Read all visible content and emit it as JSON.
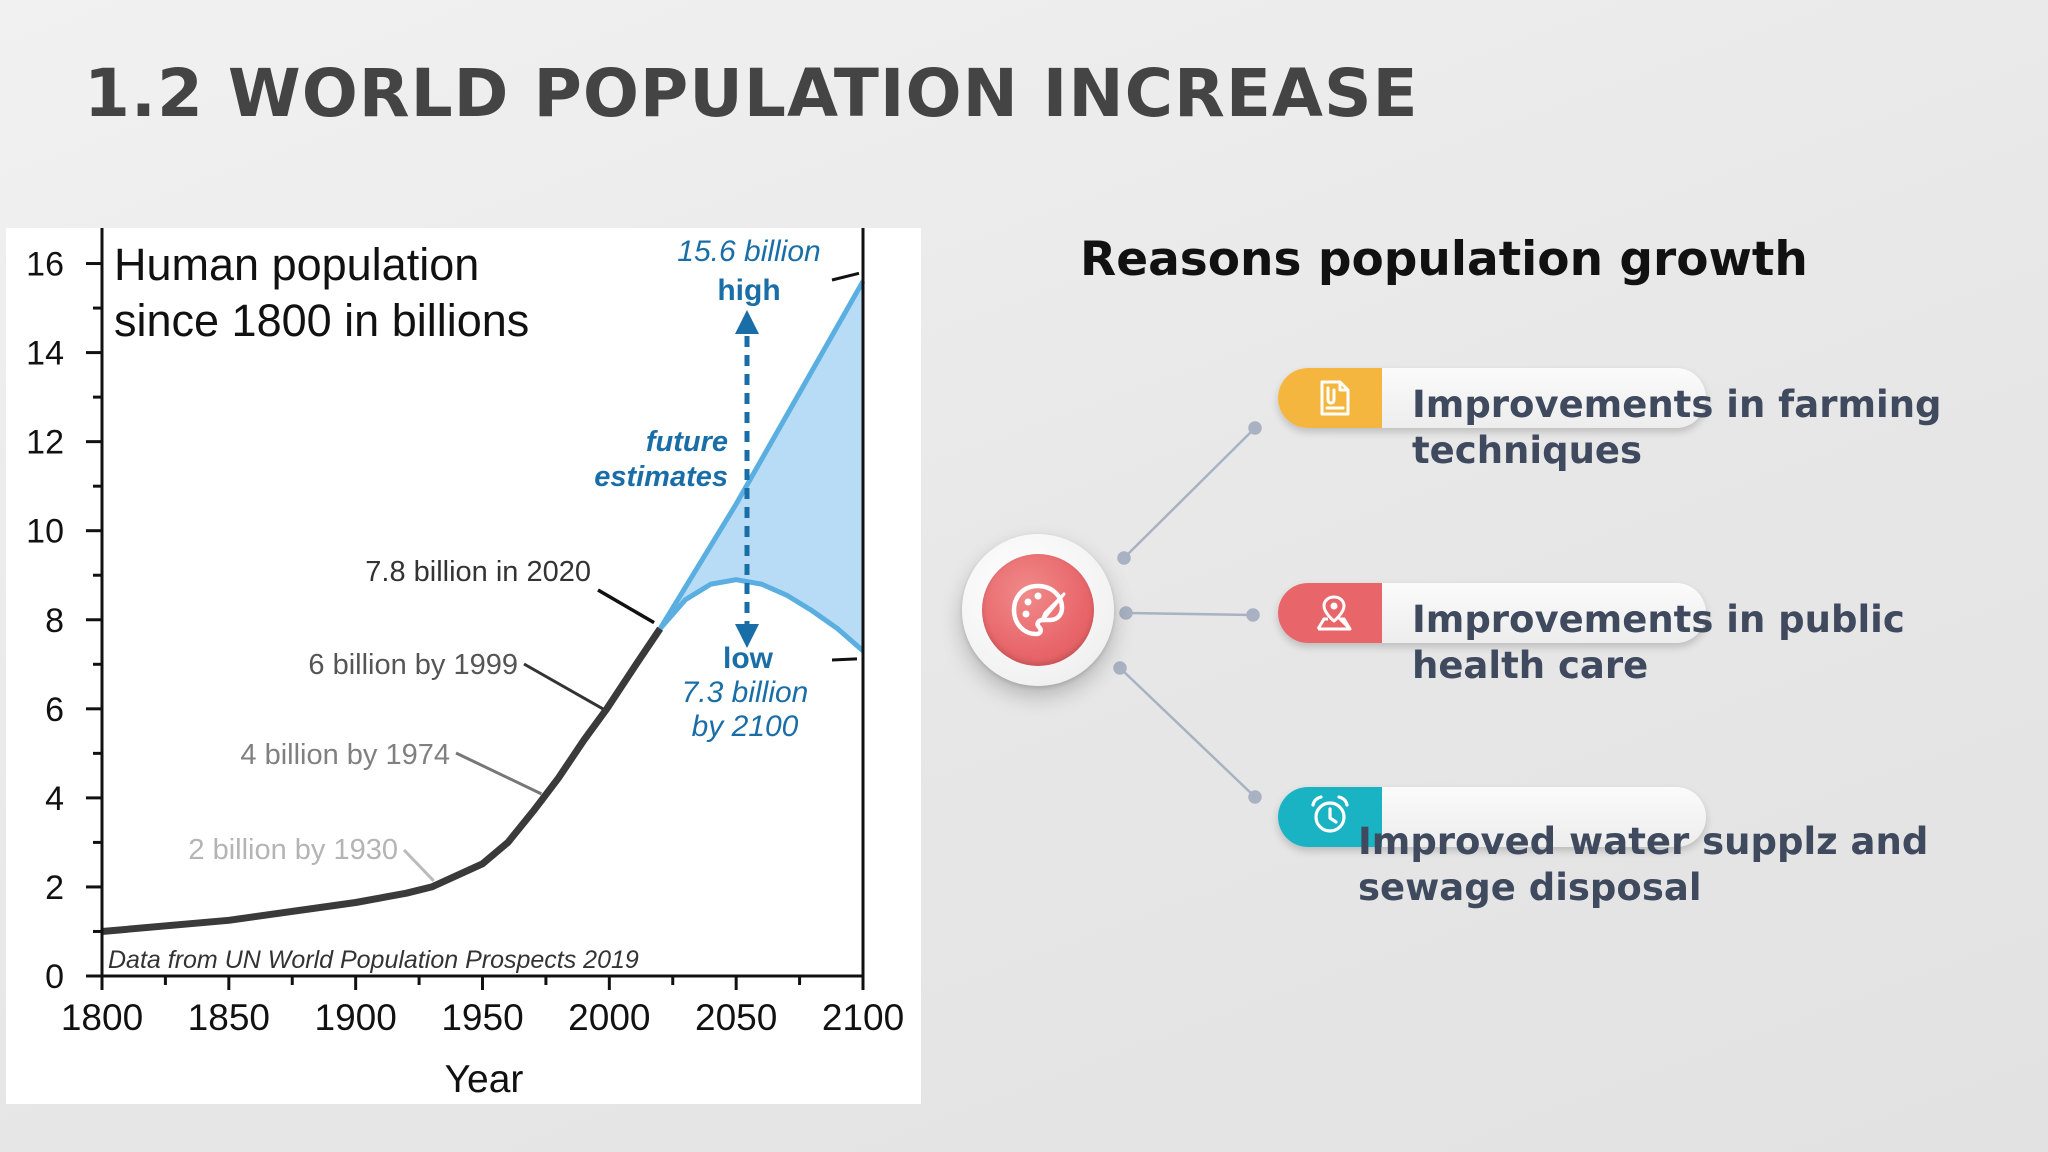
{
  "slide": {
    "title": "1.2 WORLD POPULATION INCREASE"
  },
  "reasons": {
    "heading": "Reasons population growth",
    "items": [
      {
        "line1": "Improvements in farming",
        "line2": "techniques",
        "color": "#f5b63f",
        "icon": "document-icon"
      },
      {
        "line1": "Improvements in public",
        "line2": "health care",
        "color": "#e8666a",
        "icon": "map-pin-icon"
      },
      {
        "line1": "Improved water supplz and",
        "line2": "sewage disposal",
        "color": "#19b3c4",
        "icon": "alarm-clock-icon"
      }
    ],
    "hub_color": "#e8666a",
    "hub_icon": "palette-icon"
  },
  "chart_data": {
    "type": "line",
    "title_lines": [
      "Human population",
      "since 1800 in billions"
    ],
    "xlabel": "Year",
    "ylabel": "",
    "xlim": [
      1800,
      2100
    ],
    "ylim": [
      0,
      17
    ],
    "xticks": [
      1800,
      1850,
      1900,
      1950,
      2000,
      2050,
      2100
    ],
    "yticks": [
      0,
      2,
      4,
      6,
      8,
      10,
      12,
      14,
      16
    ],
    "grid": false,
    "source_note": "Data from UN World Population Prospects 2019",
    "colors": {
      "historical": "#3a3a3a",
      "projection": "#5aaee0",
      "band": "#b8dcf5",
      "annotation": "#1a6ea8"
    },
    "series": [
      {
        "kind": "historical",
        "x": [
          1800,
          1850,
          1900,
          1920,
          1930,
          1950,
          1960,
          1970,
          1974,
          1980,
          1990,
          1999,
          2010,
          2020
        ],
        "y": [
          1.0,
          1.25,
          1.65,
          1.86,
          2.0,
          2.52,
          3.0,
          3.7,
          4.0,
          4.45,
          5.3,
          6.0,
          6.95,
          7.8
        ]
      },
      {
        "kind": "projection-high",
        "x": [
          2020,
          2050,
          2100
        ],
        "y": [
          7.8,
          10.6,
          15.6
        ]
      },
      {
        "kind": "projection-low",
        "x": [
          2020,
          2030,
          2040,
          2050,
          2060,
          2070,
          2080,
          2090,
          2100
        ],
        "y": [
          7.8,
          8.45,
          8.8,
          8.9,
          8.8,
          8.55,
          8.2,
          7.8,
          7.3
        ]
      }
    ],
    "annotations": [
      {
        "text": "7.8 billion in 2020",
        "x": 2020,
        "y": 7.8
      },
      {
        "text": "6 billion by 1999",
        "x": 1999,
        "y": 6.0
      },
      {
        "text": "4 billion by 1974",
        "x": 1974,
        "y": 4.0
      },
      {
        "text": "2 billion by 1930",
        "x": 1930,
        "y": 2.0
      }
    ],
    "future": {
      "high_value": "15.6 billion",
      "high_label": "high",
      "middle_lines": [
        "future",
        "estimates"
      ],
      "low_label": "low",
      "low_value": "7.3 billion",
      "low_by": "by 2100"
    }
  }
}
